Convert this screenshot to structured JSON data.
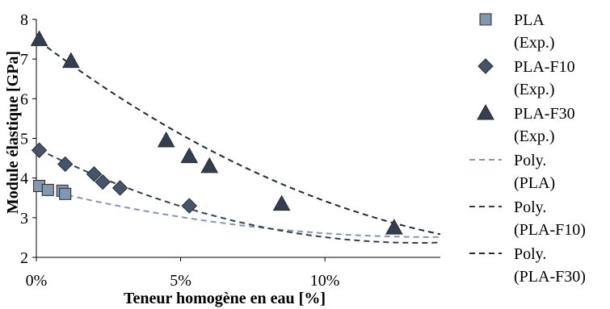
{
  "chart_data": {
    "type": "scatter",
    "xlabel": "Teneur homogène en eau [%]",
    "ylabel": "Module élastique [GPa]",
    "xlim": [
      0,
      14
    ],
    "ylim": [
      2,
      8
    ],
    "x_ticks": [
      {
        "value": 0,
        "label": "0%"
      },
      {
        "value": 5,
        "label": "5%"
      },
      {
        "value": 10,
        "label": "10%"
      }
    ],
    "y_ticks": [
      {
        "value": 2,
        "label": "2"
      },
      {
        "value": 3,
        "label": "3"
      },
      {
        "value": 4,
        "label": "4"
      },
      {
        "value": 5,
        "label": "5"
      },
      {
        "value": 6,
        "label": "6"
      },
      {
        "value": 7,
        "label": "7"
      },
      {
        "value": 8,
        "label": "8"
      }
    ],
    "grid": false,
    "legend_position": "right",
    "series": [
      {
        "name": "PLA (Exp.)",
        "marker": "square",
        "color": "#8497b0",
        "x": [
          0.1,
          0.4,
          0.9,
          1.0
        ],
        "y": [
          3.8,
          3.7,
          3.68,
          3.6
        ]
      },
      {
        "name": "PLA-F10 (Exp.)",
        "marker": "diamond",
        "color": "#44546a",
        "x": [
          0.1,
          1.0,
          2.0,
          2.3,
          2.9,
          5.3
        ],
        "y": [
          4.7,
          4.35,
          4.1,
          3.9,
          3.75,
          3.3
        ]
      },
      {
        "name": "PLA-F30 (Exp.)",
        "marker": "triangle",
        "color": "#333f50",
        "x": [
          0.1,
          1.2,
          4.5,
          5.3,
          6.0,
          8.5,
          12.4
        ],
        "y": [
          7.5,
          6.95,
          4.95,
          4.55,
          4.3,
          3.35,
          2.75
        ]
      }
    ],
    "trendlines": [
      {
        "name": "Poly. (PLA)",
        "color": "#8497b0",
        "dash": true,
        "coef": [
          3.756,
          -0.18,
          0.0065
        ],
        "x_range": [
          0.1,
          14
        ]
      },
      {
        "name": "Poly. (PLA-F10)",
        "color": "#333f50",
        "dash": true,
        "coef": [
          4.7486,
          -0.36,
          0.0136
        ],
        "x_range": [
          0.1,
          14
        ]
      },
      {
        "name": "Poly. (PLA-F30)",
        "color": "#222a35",
        "dash": true,
        "coef": [
          7.5,
          -0.55,
          0.0142
        ],
        "x_range": [
          0.1,
          14
        ]
      }
    ],
    "legend": [
      {
        "lines": [
          "PLA",
          "(Exp.)"
        ],
        "marker": "square",
        "color": "#8497b0"
      },
      {
        "lines": [
          "PLA-F10",
          "(Exp.)"
        ],
        "marker": "diamond",
        "color": "#44546a"
      },
      {
        "lines": [
          "PLA-F30",
          "(Exp.)"
        ],
        "marker": "triangle",
        "color": "#333f50"
      },
      {
        "lines": [
          "Poly.",
          "(PLA)"
        ],
        "marker": "dash",
        "color": "#8497b0"
      },
      {
        "lines": [
          "Poly.",
          "(PLA-F10)"
        ],
        "marker": "dash",
        "color": "#333f50"
      },
      {
        "lines": [
          "Poly.",
          "(PLA-F30)"
        ],
        "marker": "dash",
        "color": "#222a35"
      }
    ]
  }
}
